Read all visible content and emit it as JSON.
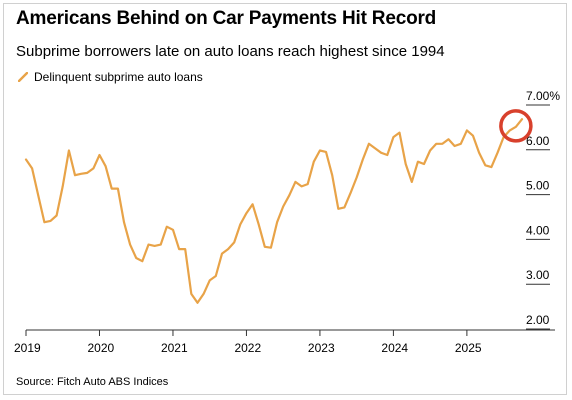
{
  "title": "Americans Behind on Car Payments Hit Record",
  "subtitle": "Subprime borrowers late on auto loans reach highest since 1994",
  "source": "Source: Fitch Auto ABS Indices",
  "colors": {
    "line": "#e8a348",
    "highlight_ring": "#d8402c",
    "grid": "#e6e6e6",
    "axis": "#333333"
  },
  "chart_data": {
    "type": "line",
    "title": "Americans Behind on Car Payments Hit Record",
    "subtitle": "Subprime borrowers late on auto loans reach highest since 1994",
    "xlabel": "",
    "ylabel": "",
    "legend": "top-left",
    "grid": false,
    "xlim": [
      "2019-01",
      "2025-10"
    ],
    "ylim": [
      2.0,
      7.0
    ],
    "x_ticks": [
      "2019",
      "2020",
      "2021",
      "2022",
      "2023",
      "2024",
      "2025"
    ],
    "y_ticks": [
      "2.00",
      "3.00",
      "4.00",
      "5.00",
      "6.00",
      "7.00%"
    ],
    "series": [
      {
        "name": "Delinquent subprime auto loans",
        "x": [
          "2019-01",
          "2019-02",
          "2019-03",
          "2019-04",
          "2019-05",
          "2019-06",
          "2019-07",
          "2019-08",
          "2019-09",
          "2019-10",
          "2019-11",
          "2019-12",
          "2020-01",
          "2020-02",
          "2020-03",
          "2020-04",
          "2020-05",
          "2020-06",
          "2020-07",
          "2020-08",
          "2020-09",
          "2020-10",
          "2020-11",
          "2020-12",
          "2021-01",
          "2021-02",
          "2021-03",
          "2021-04",
          "2021-05",
          "2021-06",
          "2021-07",
          "2021-08",
          "2021-09",
          "2021-10",
          "2021-11",
          "2021-12",
          "2022-01",
          "2022-02",
          "2022-03",
          "2022-04",
          "2022-05",
          "2022-06",
          "2022-07",
          "2022-08",
          "2022-09",
          "2022-10",
          "2022-11",
          "2022-12",
          "2023-01",
          "2023-02",
          "2023-03",
          "2023-04",
          "2023-05",
          "2023-06",
          "2023-07",
          "2023-08",
          "2023-09",
          "2023-10",
          "2023-11",
          "2023-12",
          "2024-01",
          "2024-02",
          "2024-03",
          "2024-04",
          "2024-05",
          "2024-06",
          "2024-07",
          "2024-08",
          "2024-09",
          "2024-10",
          "2024-11",
          "2024-12",
          "2025-01",
          "2025-02",
          "2025-03",
          "2025-04",
          "2025-05",
          "2025-06",
          "2025-07",
          "2025-08",
          "2025-09",
          "2025-10"
        ],
        "values": [
          5.65,
          5.45,
          4.85,
          4.25,
          4.28,
          4.4,
          5.05,
          5.85,
          5.3,
          5.33,
          5.35,
          5.45,
          5.75,
          5.5,
          5.0,
          5.0,
          4.25,
          3.75,
          3.45,
          3.38,
          3.75,
          3.72,
          3.75,
          4.15,
          4.08,
          3.65,
          3.65,
          2.65,
          2.45,
          2.65,
          2.95,
          3.05,
          3.55,
          3.65,
          3.8,
          4.2,
          4.45,
          4.65,
          4.2,
          3.7,
          3.68,
          4.25,
          4.6,
          4.85,
          5.15,
          5.05,
          5.1,
          5.6,
          5.85,
          5.82,
          5.3,
          4.55,
          4.58,
          4.9,
          5.25,
          5.65,
          6.0,
          5.9,
          5.8,
          5.75,
          6.15,
          6.25,
          5.55,
          5.15,
          5.6,
          5.55,
          5.85,
          6.0,
          6.0,
          6.1,
          5.95,
          6.0,
          6.3,
          6.18,
          5.8,
          5.52,
          5.48,
          5.8,
          6.15,
          6.3,
          6.38,
          6.55
        ]
      }
    ],
    "highlight": {
      "x": "2025-09",
      "y": 6.4,
      "shape": "circle"
    }
  }
}
